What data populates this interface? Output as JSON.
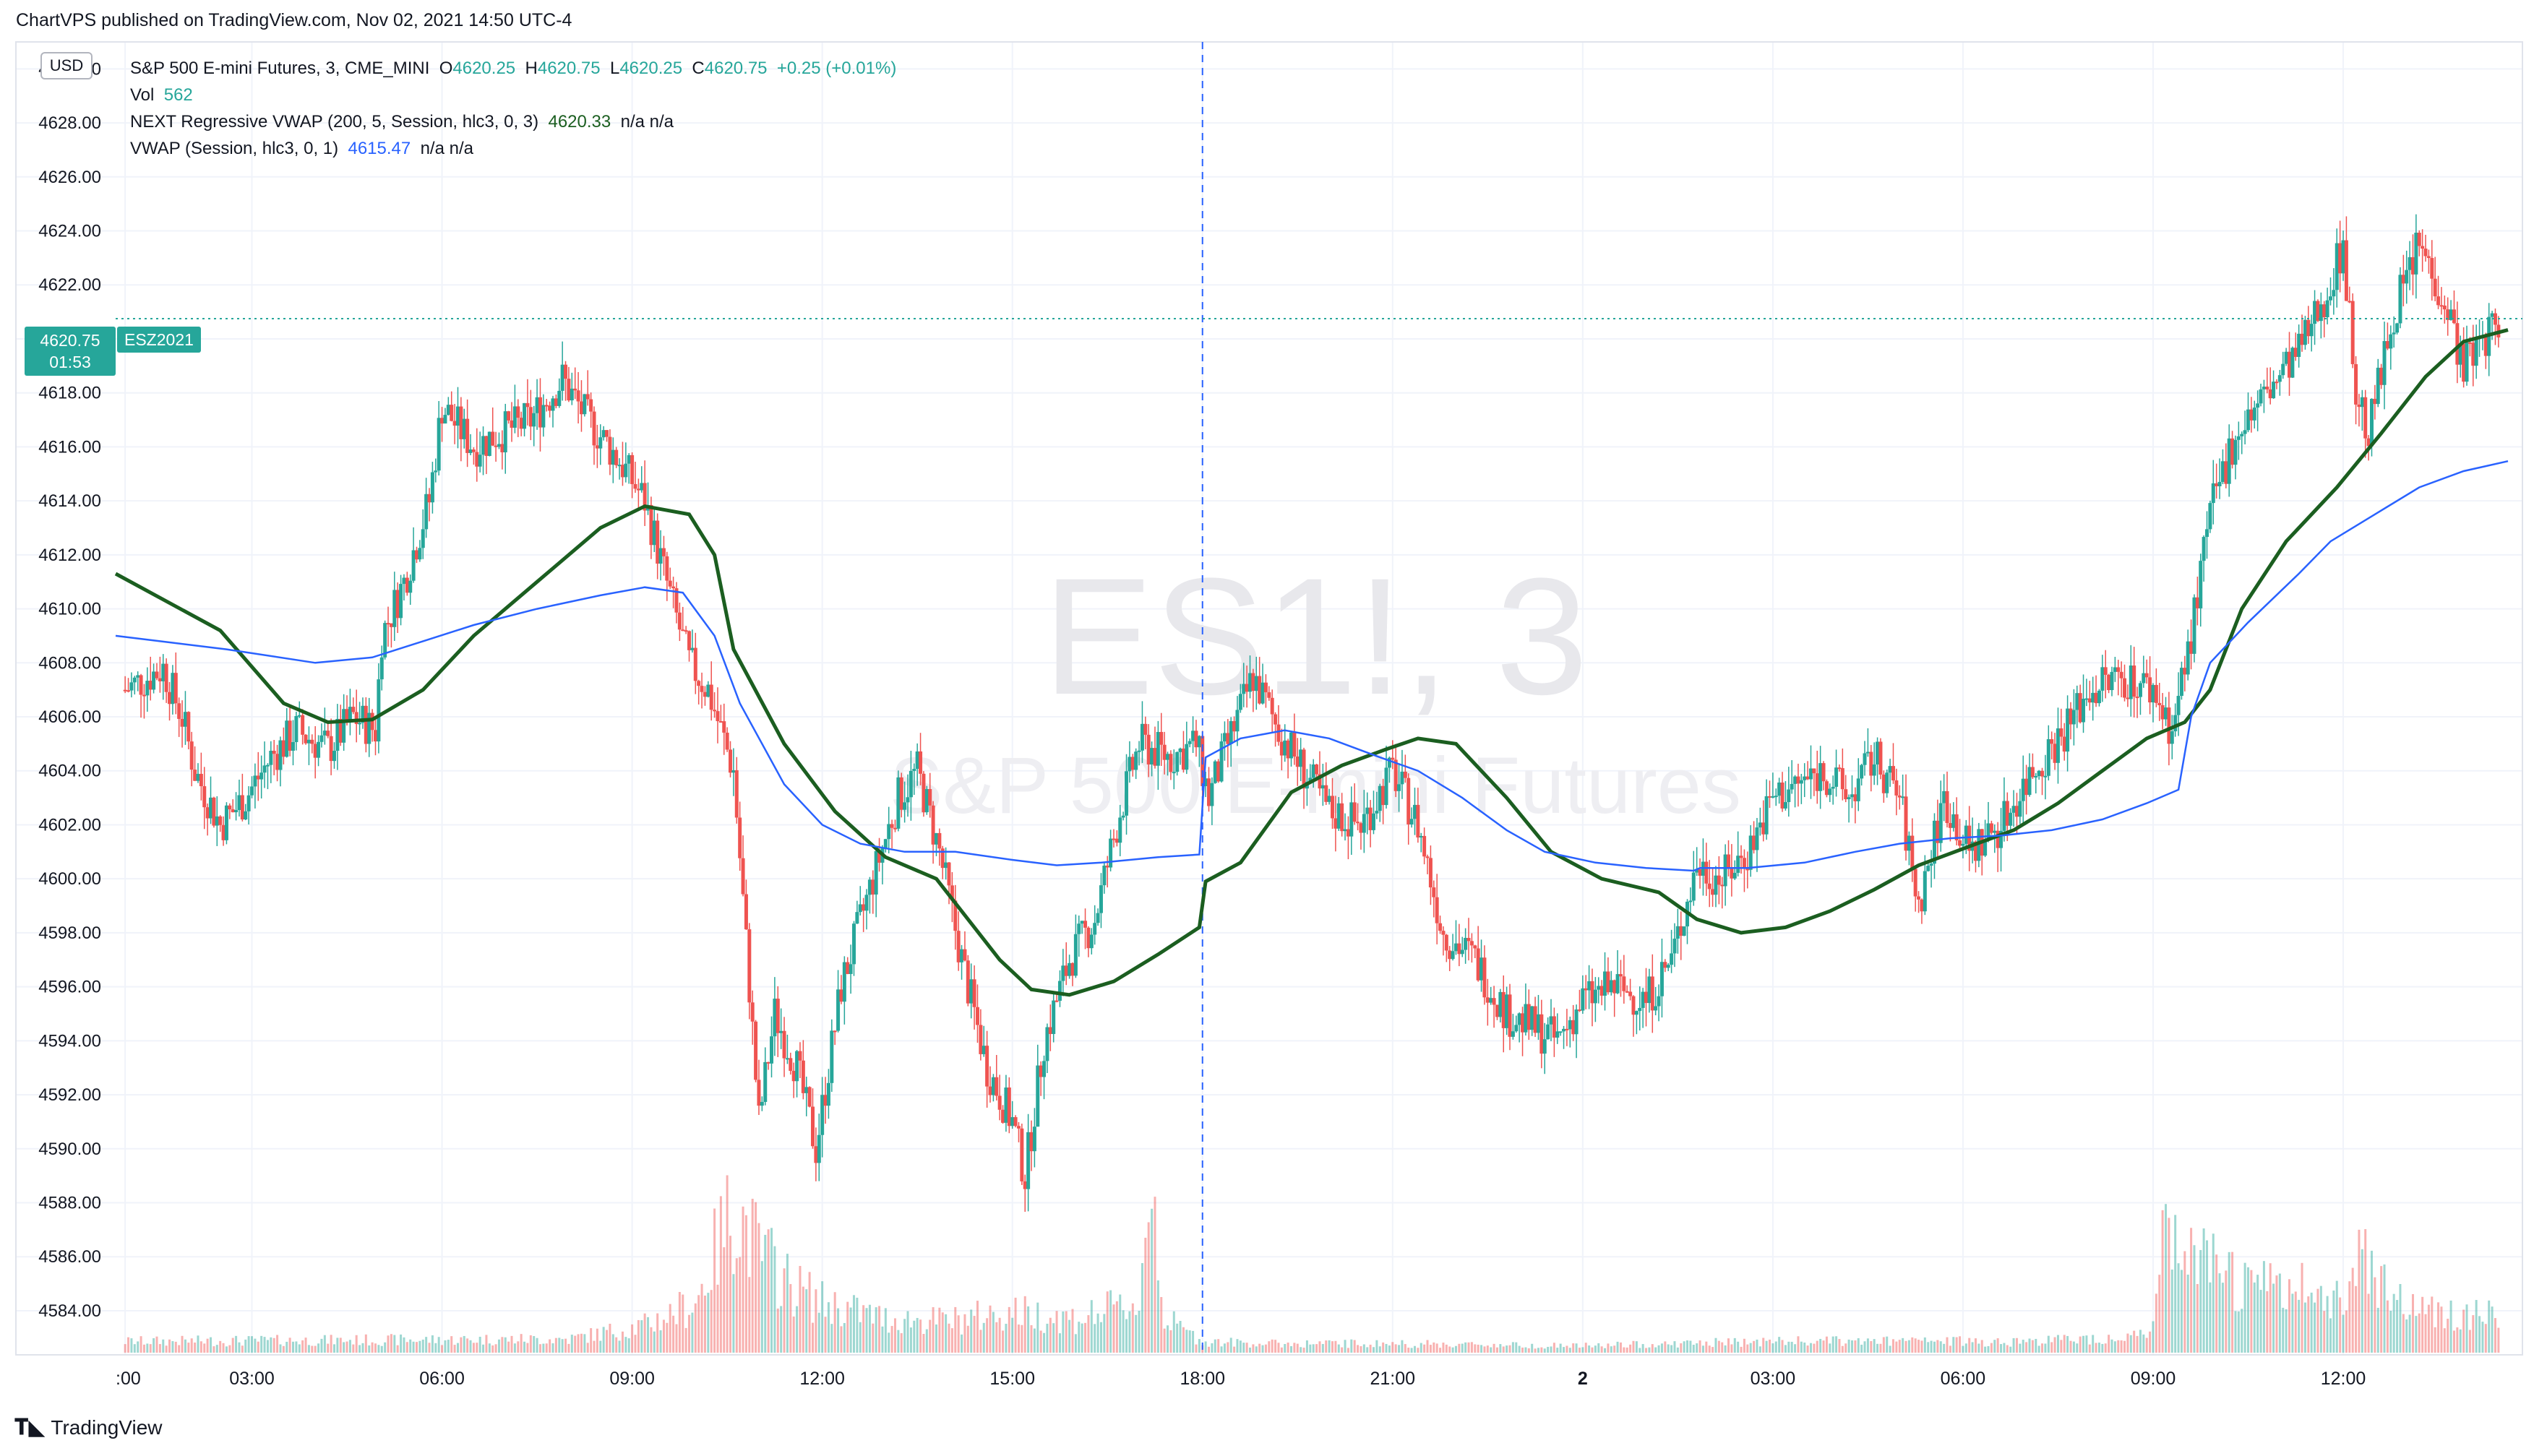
{
  "publisher_line": "ChartVPS published on TradingView.com, Nov 02, 2021 14:50 UTC-4",
  "currency_button": "USD",
  "legend": {
    "symbol": "S&P 500 E-mini Futures, 3, CME_MINI",
    "o_label": "O",
    "o_value": "4620.25",
    "h_label": "H",
    "h_value": "4620.75",
    "l_label": "L",
    "l_value": "4620.25",
    "c_label": "C",
    "c_value": "4620.75",
    "change": "+0.25 (+0.01%)",
    "vol_label": "Vol",
    "vol_value": "562",
    "rvwap_label": "NEXT Regressive VWAP (200, 5, Session, hlc3, 0, 3)",
    "rvwap_value": "4620.33",
    "rvwap_na": "n/a  n/a",
    "vwap_label": "VWAP (Session, hlc3, 0, 1)",
    "vwap_value": "4615.47",
    "vwap_na": "n/a  n/a"
  },
  "price_tag": {
    "price": "4620.75",
    "countdown": "01:53",
    "symbol": "ESZ2021"
  },
  "watermark": {
    "symbol": "ES1!, 3",
    "name": "S&P 500 E-mini Futures"
  },
  "brand": "TradingView",
  "colors": {
    "up": "#26a69a",
    "down": "#ef5350",
    "rvwap": "#1b5e20",
    "vwap": "#2962ff",
    "session_break": "#2962ff",
    "grid": "#f0f3fa",
    "axis_text": "#131722"
  },
  "chart_data": {
    "type": "candlestick",
    "title": "S&P 500 E-mini Futures, 3, CME_MINI",
    "interval": "3",
    "ylim": [
      4582.5,
      4631.0
    ],
    "y_ticks": [
      "4630.00",
      "4628.00",
      "4626.00",
      "4624.00",
      "4622.00",
      "4620.00",
      "4618.00",
      "4616.00",
      "4614.00",
      "4612.00",
      "4610.00",
      "4608.00",
      "4606.00",
      "4604.00",
      "4602.00",
      "4600.00",
      "4598.00",
      "4596.00",
      "4594.00",
      "4592.00",
      "4590.00",
      "4588.00",
      "4586.00",
      "4584.00"
    ],
    "x_ticks": [
      {
        "label": ":00",
        "t": 0
      },
      {
        "label": "03:00",
        "t": 2
      },
      {
        "label": "06:00",
        "t": 5
      },
      {
        "label": "09:00",
        "t": 8
      },
      {
        "label": "12:00",
        "t": 11
      },
      {
        "label": "15:00",
        "t": 14
      },
      {
        "label": "18:00",
        "t": 17
      },
      {
        "label": "21:00",
        "t": 20
      },
      {
        "label": "2",
        "t": 23
      },
      {
        "label": "03:00",
        "t": 26
      },
      {
        "label": "06:00",
        "t": 29
      },
      {
        "label": "09:00",
        "t": 32
      },
      {
        "label": "12:00",
        "t": 35
      }
    ],
    "x_range_hours": [
      -0.15,
      37.6
    ],
    "session_break_hour": 17,
    "last_price": 4620.75,
    "price_path": [
      [
        0.0,
        4607.0
      ],
      [
        0.6,
        4607.8
      ],
      [
        0.9,
        4606.0
      ],
      [
        1.1,
        4604.0
      ],
      [
        1.5,
        4602.0
      ],
      [
        1.9,
        4603.0
      ],
      [
        2.3,
        4604.5
      ],
      [
        2.7,
        4605.5
      ],
      [
        3.2,
        4604.8
      ],
      [
        3.6,
        4606.0
      ],
      [
        3.95,
        4605.5
      ],
      [
        4.05,
        4609.0
      ],
      [
        4.4,
        4611.0
      ],
      [
        4.8,
        4614.0
      ],
      [
        5.0,
        4617.5
      ],
      [
        5.5,
        4616.0
      ],
      [
        5.9,
        4616.5
      ],
      [
        6.4,
        4617.0
      ],
      [
        6.9,
        4618.5
      ],
      [
        7.3,
        4617.0
      ],
      [
        7.8,
        4615.5
      ],
      [
        8.2,
        4614.0
      ],
      [
        8.6,
        4610.5
      ],
      [
        8.9,
        4608.0
      ],
      [
        9.2,
        4607.0
      ],
      [
        9.6,
        4604.0
      ],
      [
        9.85,
        4596.0
      ],
      [
        10.0,
        4591.0
      ],
      [
        10.25,
        4595.0
      ],
      [
        10.6,
        4593.0
      ],
      [
        10.9,
        4590.0
      ],
      [
        11.3,
        4596.0
      ],
      [
        11.8,
        4600.0
      ],
      [
        12.2,
        4603.0
      ],
      [
        12.5,
        4604.0
      ],
      [
        12.85,
        4601.0
      ],
      [
        13.2,
        4597.0
      ],
      [
        13.6,
        4593.0
      ],
      [
        14.0,
        4591.0
      ],
      [
        14.2,
        4589.0
      ],
      [
        14.5,
        4594.0
      ],
      [
        14.9,
        4597.0
      ],
      [
        15.3,
        4598.5
      ],
      [
        15.7,
        4602.5
      ],
      [
        16.0,
        4605.0
      ],
      [
        16.5,
        4604.5
      ],
      [
        16.9,
        4605.0
      ],
      [
        17.1,
        4603.0
      ],
      [
        17.4,
        4605.0
      ],
      [
        17.8,
        4607.5
      ],
      [
        18.2,
        4605.5
      ],
      [
        18.6,
        4604.0
      ],
      [
        19.0,
        4602.5
      ],
      [
        19.5,
        4602.0
      ],
      [
        20.0,
        4604.0
      ],
      [
        20.4,
        4602.0
      ],
      [
        20.8,
        4598.0
      ],
      [
        21.3,
        4597.0
      ],
      [
        21.8,
        4595.0
      ],
      [
        22.2,
        4594.5
      ],
      [
        22.6,
        4594.0
      ],
      [
        23.0,
        4595.5
      ],
      [
        23.5,
        4596.0
      ],
      [
        24.0,
        4595.5
      ],
      [
        24.4,
        4597.0
      ],
      [
        24.8,
        4600.5
      ],
      [
        25.2,
        4600.0
      ],
      [
        25.6,
        4601.0
      ],
      [
        26.0,
        4603.0
      ],
      [
        26.4,
        4603.5
      ],
      [
        26.8,
        4604.0
      ],
      [
        27.2,
        4603.0
      ],
      [
        27.6,
        4604.5
      ],
      [
        28.0,
        4603.0
      ],
      [
        28.3,
        4599.0
      ],
      [
        28.7,
        4603.0
      ],
      [
        29.1,
        4601.0
      ],
      [
        29.6,
        4602.0
      ],
      [
        30.1,
        4604.0
      ],
      [
        30.6,
        4605.5
      ],
      [
        31.0,
        4607.0
      ],
      [
        31.5,
        4607.5
      ],
      [
        32.0,
        4607.0
      ],
      [
        32.3,
        4605.5
      ],
      [
        32.6,
        4609.0
      ],
      [
        32.9,
        4613.5
      ],
      [
        33.3,
        4616.5
      ],
      [
        33.8,
        4618.0
      ],
      [
        34.3,
        4619.5
      ],
      [
        34.7,
        4621.5
      ],
      [
        35.0,
        4623.5
      ],
      [
        35.2,
        4618.0
      ],
      [
        35.4,
        4616.5
      ],
      [
        35.8,
        4621.0
      ],
      [
        36.2,
        4623.5
      ],
      [
        36.6,
        4621.5
      ],
      [
        36.9,
        4619.0
      ],
      [
        37.2,
        4620.0
      ],
      [
        37.5,
        4620.75
      ]
    ],
    "series": [
      {
        "name": "NEXT Regressive VWAP (200, 5, Session, hlc3, 0, 3)",
        "x_hours": [
          -0.15,
          1.5,
          2.5,
          3.2,
          3.9,
          4.7,
          5.5,
          6.5,
          7.5,
          8.2,
          8.9,
          9.3,
          9.6,
          10.4,
          11.2,
          12.0,
          12.8,
          13.8,
          14.3,
          14.9,
          15.6,
          16.3,
          16.95,
          17.05,
          17.6,
          18.4,
          19.2,
          19.9,
          20.4,
          21.0,
          21.8,
          22.5,
          23.3,
          24.2,
          24.8,
          25.5,
          26.2,
          26.9,
          27.6,
          28.3,
          29.1,
          29.8,
          30.5,
          31.2,
          31.9,
          32.5,
          32.9,
          33.4,
          34.1,
          34.9,
          35.6,
          36.3,
          36.9,
          37.6
        ],
        "values": [
          4611.3,
          4609.2,
          4606.5,
          4605.8,
          4605.9,
          4607.0,
          4609.0,
          4611.0,
          4613.0,
          4613.8,
          4613.5,
          4612.0,
          4608.5,
          4605.0,
          4602.5,
          4600.8,
          4600.0,
          4597.0,
          4595.9,
          4595.7,
          4596.2,
          4597.2,
          4598.2,
          4599.9,
          4600.6,
          4603.2,
          4604.2,
          4604.8,
          4605.2,
          4605.0,
          4603.0,
          4601.0,
          4600.0,
          4599.5,
          4598.5,
          4598.0,
          4598.2,
          4598.8,
          4599.6,
          4600.5,
          4601.2,
          4601.8,
          4602.8,
          4604.0,
          4605.2,
          4605.8,
          4607.0,
          4610.0,
          4612.5,
          4614.5,
          4616.5,
          4618.6,
          4619.9,
          4620.33
        ]
      },
      {
        "name": "VWAP (Session, hlc3, 0, 1)",
        "x_hours": [
          -0.15,
          1.6,
          3.0,
          3.9,
          4.7,
          5.5,
          6.5,
          7.5,
          8.2,
          8.8,
          9.3,
          9.7,
          10.4,
          11.0,
          11.6,
          12.3,
          13.1,
          14.0,
          14.7,
          15.4,
          16.3,
          16.95,
          17.05,
          17.6,
          18.3,
          19.0,
          19.8,
          20.4,
          21.1,
          21.8,
          22.4,
          23.2,
          24.0,
          24.75,
          24.85,
          25.6,
          26.5,
          27.3,
          28.0,
          28.8,
          29.6,
          30.4,
          31.2,
          31.9,
          32.4,
          32.6,
          32.9,
          33.5,
          34.3,
          34.8,
          35.5,
          36.2,
          36.9,
          37.6
        ],
        "values": [
          4609.0,
          4608.5,
          4608.0,
          4608.2,
          4608.8,
          4609.4,
          4610.0,
          4610.5,
          4610.8,
          4610.6,
          4609.0,
          4606.5,
          4603.5,
          4602.0,
          4601.3,
          4601.0,
          4601.0,
          4600.7,
          4600.5,
          4600.6,
          4600.8,
          4600.9,
          4604.5,
          4605.2,
          4605.5,
          4605.2,
          4604.5,
          4604.0,
          4603.0,
          4601.8,
          4601.0,
          4600.6,
          4600.4,
          4600.3,
          4600.4,
          4600.4,
          4600.6,
          4601.0,
          4601.3,
          4601.5,
          4601.6,
          4601.8,
          4602.2,
          4602.8,
          4603.3,
          4606.0,
          4608.0,
          4609.5,
          4611.3,
          4612.5,
          4613.5,
          4614.5,
          4615.1,
          4615.47
        ]
      }
    ],
    "volume_profile": [
      [
        0,
        0.05
      ],
      [
        7,
        0.06
      ],
      [
        8.2,
        0.12
      ],
      [
        9.0,
        0.22
      ],
      [
        9.6,
        0.65
      ],
      [
        10.0,
        0.45
      ],
      [
        10.5,
        0.3
      ],
      [
        11,
        0.22
      ],
      [
        12,
        0.15
      ],
      [
        13,
        0.14
      ],
      [
        14,
        0.18
      ],
      [
        15,
        0.15
      ],
      [
        16.0,
        0.22
      ],
      [
        16.2,
        0.8
      ],
      [
        16.4,
        0.15
      ],
      [
        17.0,
        0.05
      ],
      [
        18,
        0.04
      ],
      [
        20,
        0.04
      ],
      [
        23,
        0.03
      ],
      [
        26,
        0.05
      ],
      [
        28,
        0.05
      ],
      [
        30,
        0.05
      ],
      [
        31.5,
        0.07
      ],
      [
        32.0,
        0.1
      ],
      [
        32.2,
        0.55
      ],
      [
        32.6,
        0.4
      ],
      [
        33.5,
        0.3
      ],
      [
        35,
        0.25
      ],
      [
        35.3,
        0.45
      ],
      [
        36,
        0.2
      ],
      [
        37.6,
        0.15
      ]
    ]
  }
}
